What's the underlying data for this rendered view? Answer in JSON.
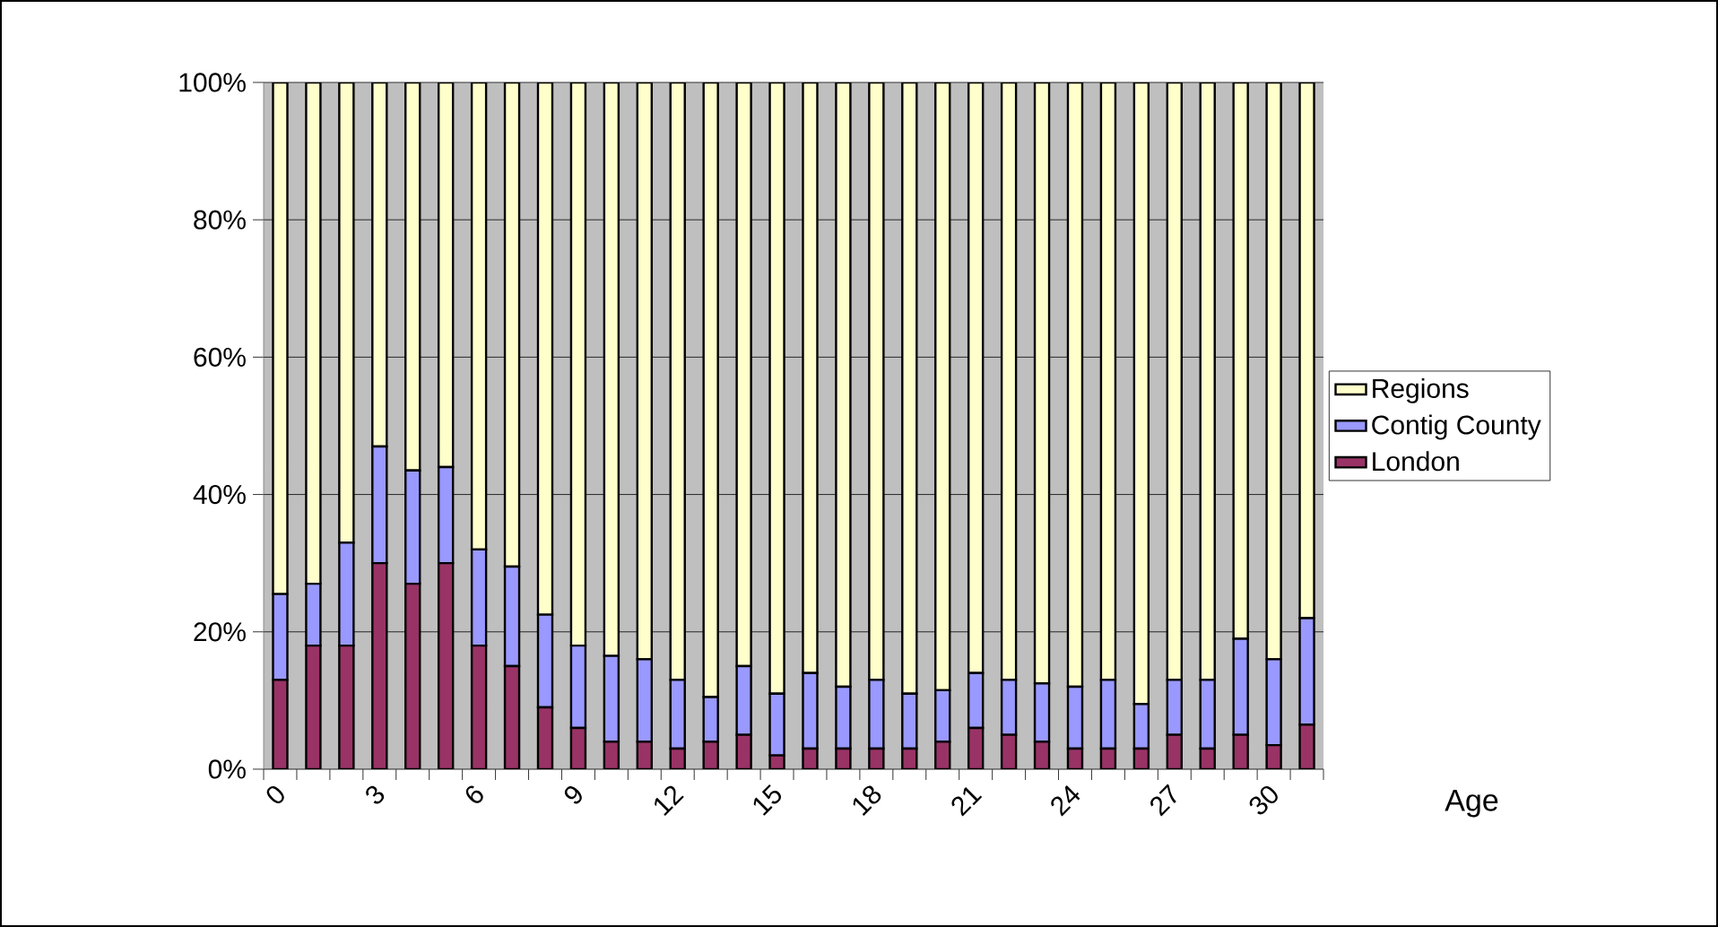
{
  "chart_data": {
    "type": "bar",
    "stacked": true,
    "xlabel": "Age",
    "categories": [
      "0",
      null,
      null,
      "3",
      null,
      null,
      "6",
      null,
      null,
      "9",
      null,
      null,
      "12",
      null,
      null,
      "15",
      null,
      null,
      "18",
      null,
      null,
      "21",
      null,
      null,
      "24",
      null,
      null,
      "27",
      null,
      null,
      "30",
      null
    ],
    "series": [
      {
        "name": "London",
        "color": "#993366",
        "values": [
          13,
          18,
          18,
          30,
          27,
          30,
          18,
          15,
          9,
          6,
          4,
          4,
          3,
          4,
          5,
          2,
          3,
          3,
          3,
          3,
          4,
          6,
          5,
          4,
          3,
          3,
          3,
          5,
          3,
          5,
          3.5,
          6.5
        ]
      },
      {
        "name": "Contig County",
        "color": "#9999ff",
        "values": [
          12.5,
          9,
          15,
          17,
          16.5,
          14,
          14,
          14.5,
          13.5,
          12,
          12.5,
          12,
          10,
          6.5,
          10,
          9,
          11,
          9,
          10,
          8,
          7.5,
          8,
          8,
          8.5,
          9,
          10,
          6.5,
          8,
          10,
          14,
          12.5,
          15.5
        ]
      },
      {
        "name": "Regions",
        "color": "#ffffcc",
        "values": [
          74.5,
          73,
          67,
          53,
          56.5,
          56,
          68,
          70.5,
          77.5,
          82,
          83.5,
          84,
          87,
          89.5,
          85,
          89,
          86,
          88,
          87,
          89,
          88.5,
          86,
          87,
          87.5,
          88,
          87,
          90.5,
          87,
          87,
          81,
          84,
          78
        ]
      }
    ],
    "ylim": [
      0,
      100
    ],
    "yticks": [
      {
        "value": 0,
        "label": "0%"
      },
      {
        "value": 20,
        "label": "20%"
      },
      {
        "value": 40,
        "label": "40%"
      },
      {
        "value": 60,
        "label": "60%"
      },
      {
        "value": 80,
        "label": "80%"
      },
      {
        "value": 100,
        "label": "100%"
      }
    ],
    "grid": "y",
    "legend": "right"
  }
}
